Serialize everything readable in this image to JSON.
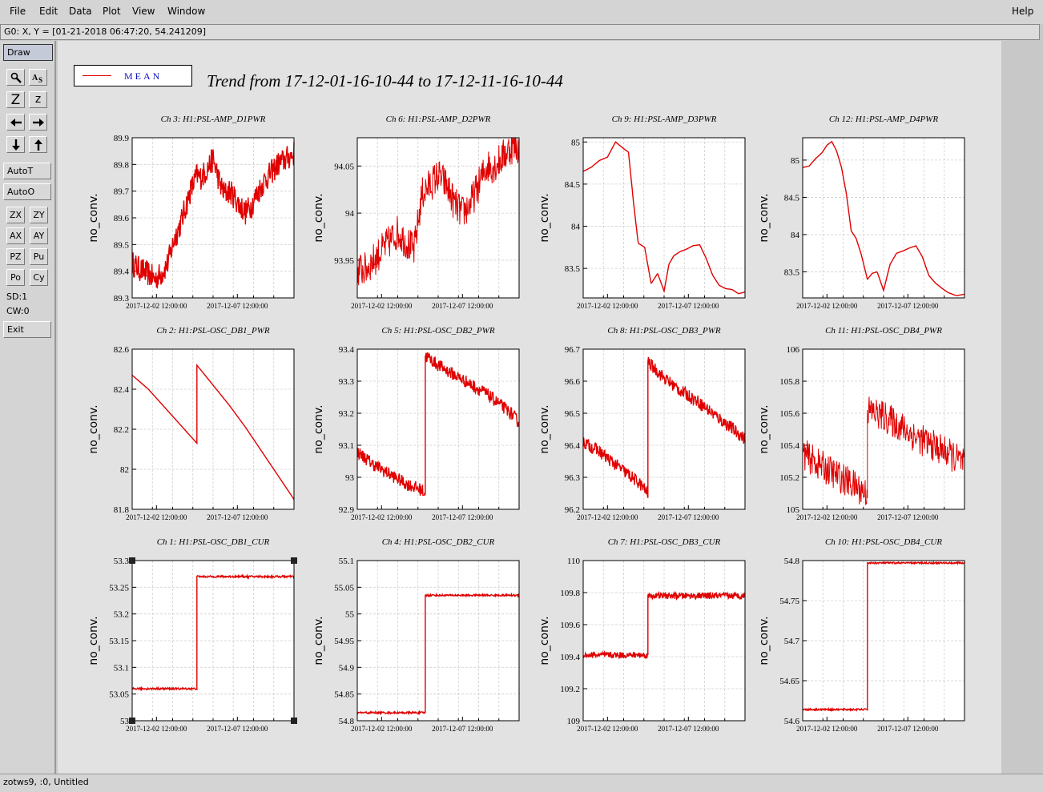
{
  "menu": {
    "file": "File",
    "edit": "Edit",
    "data": "Data",
    "plot": "Plot",
    "view": "View",
    "window": "Window",
    "help": "Help"
  },
  "coordinates": "G0: X, Y = [01-21-2018 06:47:20, 54.241209]",
  "toolbar": {
    "draw": "Draw",
    "zoom_z_big": "Z",
    "zoom_z": "z",
    "auto_t": "AutoT",
    "auto_o": "AutoO",
    "zx": "ZX",
    "zy": "ZY",
    "ax": "AX",
    "ay": "AY",
    "pz": "PZ",
    "pu": "Pu",
    "po": "Po",
    "cy": "Cy",
    "sd": "SD:1",
    "cw": "CW:0",
    "exit": "Exit"
  },
  "status": "zotws9, :0, Untitled",
  "legend": {
    "label": "MEAN",
    "color": "#e00000"
  },
  "title": "Trend from 17-12-01-16-10-44 to 17-12-11-16-10-44",
  "chart_data": [
    {
      "type": "line",
      "title": "Ch 3: H1:PSL-AMP_D1PWR",
      "ylabel": "no_conv.",
      "ylim": [
        89.3,
        89.9
      ],
      "yticks": [
        "89.3",
        "89.4",
        "89.5",
        "89.6",
        "89.7",
        "89.8",
        "89.9"
      ],
      "xticks": [
        "2017-12-02 12:00:00",
        "2017-12-07 12:00:00"
      ],
      "grid": true,
      "noise": 0.008,
      "x": [
        0,
        0.04,
        0.1,
        0.14,
        0.18,
        0.22,
        0.26,
        0.3,
        0.33,
        0.36,
        0.4,
        0.42,
        0.45,
        0.48,
        0.5,
        0.52,
        0.54,
        0.57,
        0.6,
        0.63,
        0.66,
        0.7,
        0.74,
        0.78,
        0.82,
        0.86,
        0.9,
        0.95,
        1
      ],
      "y": [
        89.43,
        89.41,
        89.39,
        89.37,
        89.39,
        89.43,
        89.52,
        89.58,
        89.64,
        89.7,
        89.76,
        89.75,
        89.77,
        89.8,
        89.82,
        89.78,
        89.73,
        89.69,
        89.7,
        89.68,
        89.65,
        89.62,
        89.65,
        89.7,
        89.74,
        89.77,
        89.8,
        89.82,
        89.84
      ]
    },
    {
      "type": "line",
      "title": "Ch 6: H1:PSL-AMP_D2PWR",
      "ylabel": "no_conv.",
      "ylim": [
        93.91,
        94.08
      ],
      "yticks": [
        "93.95",
        "94",
        "94.05"
      ],
      "xticks": [
        "2017-12-02 12:00:00",
        "2017-12-07 12:00:00"
      ],
      "grid": true,
      "noise": 0.022,
      "x": [
        0,
        0.05,
        0.1,
        0.15,
        0.2,
        0.25,
        0.3,
        0.35,
        0.4,
        0.45,
        0.5,
        0.55,
        0.6,
        0.65,
        0.7,
        0.75,
        0.8,
        0.85,
        0.9,
        0.95,
        1
      ],
      "y": [
        93.94,
        93.94,
        93.95,
        93.96,
        93.97,
        93.98,
        93.97,
        93.96,
        94.02,
        94.03,
        94.04,
        94.03,
        94.01,
        94.0,
        94.01,
        94.03,
        94.05,
        94.05,
        94.06,
        94.07,
        94.07
      ]
    },
    {
      "type": "line",
      "title": "Ch 9: H1:PSL-AMP_D3PWR",
      "ylabel": "no_conv.",
      "ylim": [
        83.15,
        85.05
      ],
      "yticks": [
        "83.5",
        "84",
        "84.5",
        "85"
      ],
      "xticks": [
        "2017-12-02 12:00:00",
        "2017-12-07 12:00:00"
      ],
      "grid": true,
      "noise": 0,
      "x": [
        0,
        0.05,
        0.1,
        0.15,
        0.2,
        0.25,
        0.28,
        0.31,
        0.34,
        0.38,
        0.42,
        0.46,
        0.5,
        0.53,
        0.56,
        0.6,
        0.64,
        0.68,
        0.72,
        0.76,
        0.8,
        0.84,
        0.88,
        0.92,
        0.96,
        1
      ],
      "y": [
        84.65,
        84.7,
        84.78,
        84.82,
        85.0,
        84.92,
        84.88,
        84.3,
        83.8,
        83.75,
        83.32,
        83.44,
        83.23,
        83.55,
        83.65,
        83.7,
        83.73,
        83.77,
        83.78,
        83.62,
        83.42,
        83.3,
        83.26,
        83.25,
        83.2,
        83.22
      ]
    },
    {
      "type": "line",
      "title": "Ch 12: H1:PSL-AMP_D4PWR",
      "ylabel": "no_conv.",
      "ylim": [
        83.15,
        85.3
      ],
      "yticks": [
        "83.5",
        "84",
        "84.5",
        "85"
      ],
      "xticks": [
        "2017-12-02 12:00:00",
        "2017-12-07 12:00:00"
      ],
      "grid": true,
      "noise": 0,
      "x": [
        0,
        0.04,
        0.08,
        0.12,
        0.15,
        0.18,
        0.21,
        0.24,
        0.27,
        0.3,
        0.33,
        0.36,
        0.4,
        0.43,
        0.46,
        0.5,
        0.54,
        0.58,
        0.62,
        0.66,
        0.7,
        0.74,
        0.78,
        0.82,
        0.86,
        0.9,
        0.95,
        1
      ],
      "y": [
        84.9,
        84.92,
        85.02,
        85.1,
        85.2,
        85.25,
        85.12,
        84.9,
        84.55,
        84.05,
        83.95,
        83.75,
        83.4,
        83.48,
        83.5,
        83.25,
        83.6,
        83.75,
        83.78,
        83.82,
        83.85,
        83.7,
        83.45,
        83.35,
        83.28,
        83.22,
        83.18,
        83.2
      ]
    },
    {
      "type": "line",
      "title": "Ch 2: H1:PSL-OSC_DB1_PWR",
      "ylabel": "no_conv.",
      "ylim": [
        81.8,
        82.6
      ],
      "yticks": [
        "81.8",
        "82",
        "82.2",
        "82.4",
        "82.6"
      ],
      "xticks": [
        "2017-12-02 12:00:00",
        "2017-12-07 12:00:00"
      ],
      "grid": true,
      "noise": 0,
      "x": [
        0,
        0.1,
        0.2,
        0.3,
        0.4,
        0.4001,
        0.5,
        0.6,
        0.7,
        0.8,
        0.9,
        1
      ],
      "y": [
        82.47,
        82.4,
        82.31,
        82.22,
        82.13,
        82.52,
        82.42,
        82.32,
        82.21,
        82.09,
        81.97,
        81.85
      ]
    },
    {
      "type": "line",
      "title": "Ch 5: H1:PSL-OSC_DB2_PWR",
      "ylabel": "no_conv.",
      "ylim": [
        92.9,
        93.4
      ],
      "yticks": [
        "92.9",
        "93",
        "93.1",
        "93.2",
        "93.3",
        "93.4"
      ],
      "xticks": [
        "2017-12-02 12:00:00",
        "2017-12-07 12:00:00"
      ],
      "grid": true,
      "noise": 0.004,
      "x": [
        0,
        0.1,
        0.2,
        0.3,
        0.4,
        0.42,
        0.4201,
        0.5,
        0.6,
        0.7,
        0.8,
        0.9,
        0.95,
        1
      ],
      "y": [
        93.08,
        93.04,
        93.01,
        92.98,
        92.96,
        92.95,
        93.38,
        93.35,
        93.32,
        93.29,
        93.26,
        93.22,
        93.2,
        93.17
      ]
    },
    {
      "type": "line",
      "title": "Ch 8: H1:PSL-OSC_DB3_PWR",
      "ylabel": "no_conv.",
      "ylim": [
        96.2,
        96.7
      ],
      "yticks": [
        "96.2",
        "96.3",
        "96.4",
        "96.5",
        "96.6",
        "96.7"
      ],
      "xticks": [
        "2017-12-02 12:00:00",
        "2017-12-07 12:00:00"
      ],
      "grid": true,
      "noise": 0.004,
      "x": [
        0,
        0.1,
        0.2,
        0.3,
        0.35,
        0.4,
        0.4001,
        0.5,
        0.6,
        0.7,
        0.8,
        0.9,
        1
      ],
      "y": [
        96.41,
        96.38,
        96.34,
        96.3,
        96.28,
        96.25,
        96.66,
        96.61,
        96.57,
        96.54,
        96.5,
        96.46,
        96.42
      ]
    },
    {
      "type": "line",
      "title": "Ch 11: H1:PSL-OSC_DB4_PWR",
      "ylabel": "no_conv.",
      "ylim": [
        105,
        106
      ],
      "yticks": [
        "105",
        "105.2",
        "105.4",
        "105.6",
        "105.8",
        "106"
      ],
      "xticks": [
        "2017-12-02 12:00:00",
        "2017-12-07 12:00:00"
      ],
      "grid": true,
      "noise": 0.02,
      "x": [
        0,
        0.1,
        0.2,
        0.3,
        0.4,
        0.4001,
        0.5,
        0.6,
        0.7,
        0.8,
        0.9,
        1
      ],
      "y": [
        105.35,
        105.28,
        105.22,
        105.16,
        105.1,
        105.62,
        105.58,
        105.52,
        105.45,
        105.4,
        105.35,
        105.28
      ]
    },
    {
      "type": "line",
      "title": "Ch 1: H1:PSL-OSC_DB1_CUR",
      "ylabel": "no_conv.",
      "ylim": [
        53,
        53.3
      ],
      "yticks": [
        "53",
        "53.05",
        "53.1",
        "53.15",
        "53.2",
        "53.25",
        "53.3"
      ],
      "xticks": [
        "2017-12-02 12:00:00",
        "2017-12-07 12:00:00"
      ],
      "grid": true,
      "noise": 0.0006,
      "selected": true,
      "x": [
        0,
        0.4,
        0.4001,
        1
      ],
      "y": [
        53.06,
        53.06,
        53.27,
        53.27
      ]
    },
    {
      "type": "line",
      "title": "Ch 4: H1:PSL-OSC_DB2_CUR",
      "ylabel": "no_conv.",
      "ylim": [
        54.8,
        55.1
      ],
      "yticks": [
        "54.8",
        "54.85",
        "54.9",
        "54.95",
        "55",
        "55.05",
        "55.1"
      ],
      "xticks": [
        "2017-12-02 12:00:00",
        "2017-12-07 12:00:00"
      ],
      "grid": true,
      "noise": 0.0006,
      "x": [
        0,
        0.42,
        0.4201,
        1
      ],
      "y": [
        54.815,
        54.815,
        55.035,
        55.035
      ]
    },
    {
      "type": "line",
      "title": "Ch 7: H1:PSL-OSC_DB3_CUR",
      "ylabel": "no_conv.",
      "ylim": [
        109,
        110
      ],
      "yticks": [
        "109",
        "109.2",
        "109.4",
        "109.6",
        "109.8",
        "110"
      ],
      "xticks": [
        "2017-12-02 12:00:00",
        "2017-12-07 12:00:00"
      ],
      "grid": true,
      "noise": 0.002,
      "x": [
        0,
        0.4,
        0.4001,
        1
      ],
      "y": [
        109.41,
        109.41,
        109.78,
        109.78
      ]
    },
    {
      "type": "line",
      "title": "Ch 10: H1:PSL-OSC_DB4_CUR",
      "ylabel": "no_conv.",
      "ylim": [
        54.6,
        54.8
      ],
      "yticks": [
        "54.6",
        "54.65",
        "54.7",
        "54.75",
        "54.8"
      ],
      "xticks": [
        "2017-12-02 12:00:00",
        "2017-12-07 12:00:00"
      ],
      "grid": true,
      "noise": 0.0005,
      "x": [
        0,
        0.4,
        0.4001,
        1
      ],
      "y": [
        54.614,
        54.614,
        54.797,
        54.797
      ]
    }
  ]
}
